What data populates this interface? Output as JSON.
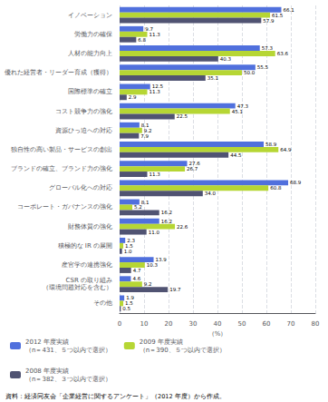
{
  "chart_data": {
    "type": "bar",
    "orientation": "horizontal",
    "categories": [
      "イノベーション",
      "労働力の確保",
      "人材の能力向上",
      "優れた経営者・リーダー育成（獲得）",
      "国際標準の確立",
      "コスト競争力の強化",
      "資源ひっ迫への対応",
      "独自性の高い製品・サービスの創出",
      "ブランドの確立、ブランド力の強化",
      "グローバル化への対応",
      "コーポレート・ガバナンスの強化",
      "財務体質の強化",
      "積極的な IR の展開",
      "産官学の連携強化",
      "CSR の取り組み\n（環境問題対応を含む）",
      "その他"
    ],
    "series": [
      {
        "name": "2012 年度実績\n（n＝431、５つ以内で選択）",
        "values": [
          66.1,
          9.7,
          57.3,
          55.5,
          12.5,
          47.3,
          8.1,
          58.9,
          27.6,
          68.9,
          8.1,
          16.2,
          2.3,
          13.9,
          4.6,
          1.9
        ],
        "value_labels": [
          "66.1",
          "9.7",
          "57.3",
          "55.5",
          "12.5",
          "47.3",
          "8.1",
          "58.9",
          "27.6",
          "68.9",
          "8.1",
          "16.2",
          "2.3",
          "13.9",
          "4.6",
          "1.9"
        ]
      },
      {
        "name": "2009 年度実績\n（n＝390、５つ以内で選択）",
        "values": [
          61.5,
          11.3,
          63.6,
          50.0,
          11.3,
          45.1,
          9.2,
          64.9,
          26.7,
          60.8,
          5.2,
          22.6,
          1.5,
          10.3,
          9.2,
          1.5
        ],
        "value_labels": [
          "61.5",
          "11.3",
          "63.6",
          "50.0",
          "11.3",
          "45.1",
          "9.2",
          "64.9",
          "26.7",
          "60.8",
          "5.2",
          "22.6",
          "1.5",
          "10.3",
          "9.2",
          "1.5"
        ]
      },
      {
        "name": "2008 年度実績\n（n＝382、３つ以内で選択）",
        "values": [
          57.9,
          6.8,
          40.3,
          35.1,
          2.9,
          22.5,
          7.9,
          44.5,
          11.3,
          34.0,
          16.2,
          11.0,
          1.0,
          4.7,
          19.7,
          0.5
        ],
        "value_labels": [
          "57.9",
          "6.8",
          "40.3",
          "35.1",
          "2.9",
          "22.5",
          "7.9",
          "44.5",
          "11.3",
          "34.0",
          "16.2",
          "11.0",
          "1.0",
          "4.7",
          "19.7",
          "0.5"
        ]
      }
    ],
    "xlabel": "（%）",
    "xlim": [
      0,
      80
    ],
    "xticks": [
      0,
      10,
      20,
      30,
      40,
      50,
      60,
      70,
      80
    ],
    "grid": true,
    "data_labels": true,
    "legend": "bottom",
    "annotations": [
      "資料：経済同友会「企業経営に関するアンケート」（2012 年度）から作成。"
    ]
  }
}
